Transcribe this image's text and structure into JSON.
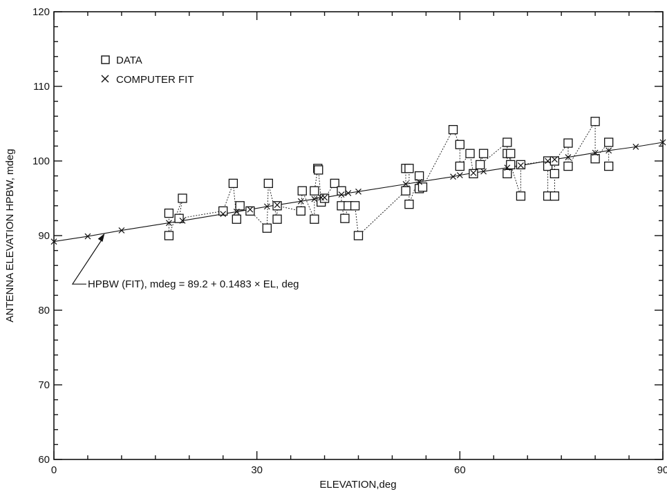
{
  "chart_data": {
    "type": "scatter",
    "title": "",
    "xlabel": "ELEVATION,deg",
    "ylabel": "ANTENNA ELEVATION HPBW, mdeg",
    "xlim": [
      0,
      90
    ],
    "ylim": [
      60,
      120
    ],
    "x_ticks": [
      0,
      30,
      60,
      90
    ],
    "y_ticks": [
      60,
      70,
      80,
      90,
      100,
      110,
      120
    ],
    "grid": false,
    "legend_position": "top-left",
    "series": [
      {
        "name": "DATA",
        "marker": "square",
        "connected": true,
        "points": [
          [
            17,
            93
          ],
          [
            17,
            90
          ],
          [
            19,
            95
          ],
          [
            18.5,
            92.3
          ],
          [
            25,
            93.3
          ],
          [
            26.5,
            97
          ],
          [
            27,
            92.2
          ],
          [
            27.5,
            94
          ],
          [
            29,
            93.3
          ],
          [
            31.5,
            91
          ],
          [
            31.7,
            97
          ],
          [
            33,
            92.2
          ],
          [
            33,
            94
          ],
          [
            36.5,
            93.3
          ],
          [
            36.7,
            96
          ],
          [
            38.5,
            92.2
          ],
          [
            38.5,
            96
          ],
          [
            39,
            99
          ],
          [
            39.1,
            98.8
          ],
          [
            39.5,
            94.5
          ],
          [
            40,
            95
          ],
          [
            41.5,
            97
          ],
          [
            42.5,
            96
          ],
          [
            42.5,
            94
          ],
          [
            43,
            92.3
          ],
          [
            43.5,
            94
          ],
          [
            44.5,
            94
          ],
          [
            45,
            90
          ],
          [
            52,
            96
          ],
          [
            52,
            99
          ],
          [
            52.5,
            99
          ],
          [
            52.5,
            94.2
          ],
          [
            54,
            98
          ],
          [
            54,
            96.3
          ],
          [
            54.5,
            96.5
          ],
          [
            59,
            104.2
          ],
          [
            60,
            102.2
          ],
          [
            60,
            99.3
          ],
          [
            61.5,
            101
          ],
          [
            62,
            98.3
          ],
          [
            63.5,
            101
          ],
          [
            63,
            99.5
          ],
          [
            67,
            102.5
          ],
          [
            67,
            101
          ],
          [
            67,
            98.3
          ],
          [
            67.5,
            101
          ],
          [
            67.5,
            99.5
          ],
          [
            69,
            95.3
          ],
          [
            69,
            99.5
          ],
          [
            73,
            100
          ],
          [
            73,
            99.3
          ],
          [
            73,
            95.3
          ],
          [
            74,
            95.3
          ],
          [
            74,
            98.3
          ],
          [
            74,
            100
          ],
          [
            76,
            102.4
          ],
          [
            76,
            99.3
          ],
          [
            80,
            105.3
          ],
          [
            80,
            100.3
          ],
          [
            82,
            102.5
          ],
          [
            82,
            99.3
          ]
        ]
      },
      {
        "name": "COMPUTER FIT",
        "marker": "x",
        "connected": true,
        "points": [
          [
            0,
            89.2
          ],
          [
            5,
            89.9
          ],
          [
            10,
            90.7
          ],
          [
            17,
            91.7
          ],
          [
            19,
            92.0
          ],
          [
            25,
            92.9
          ],
          [
            27,
            93.2
          ],
          [
            29,
            93.5
          ],
          [
            31.5,
            93.9
          ],
          [
            33,
            94.1
          ],
          [
            36.5,
            94.6
          ],
          [
            38.5,
            94.9
          ],
          [
            39.5,
            95.1
          ],
          [
            40,
            95.1
          ],
          [
            42.5,
            95.5
          ],
          [
            43.5,
            95.7
          ],
          [
            45,
            95.9
          ],
          [
            52,
            96.9
          ],
          [
            54,
            97.2
          ],
          [
            59,
            97.9
          ],
          [
            60,
            98.1
          ],
          [
            62,
            98.4
          ],
          [
            63.5,
            98.6
          ],
          [
            67,
            99.1
          ],
          [
            69,
            99.4
          ],
          [
            73,
            100.0
          ],
          [
            74,
            100.2
          ],
          [
            76,
            100.5
          ],
          [
            80,
            101.1
          ],
          [
            82,
            101.4
          ],
          [
            86,
            101.9
          ],
          [
            90,
            102.5
          ]
        ]
      }
    ],
    "annotation": {
      "text": "HPBW (FIT), mdeg = 89.2 + 0.1483 × EL, deg",
      "arrow_to": [
        7.5,
        90.3
      ],
      "label_at": [
        5,
        83.5
      ]
    }
  },
  "legend": {
    "items": [
      {
        "symbol": "square",
        "label": "DATA"
      },
      {
        "symbol": "x",
        "label": "COMPUTER FIT"
      }
    ]
  },
  "colors": {
    "ink": "#111111",
    "background": "#ffffff"
  }
}
